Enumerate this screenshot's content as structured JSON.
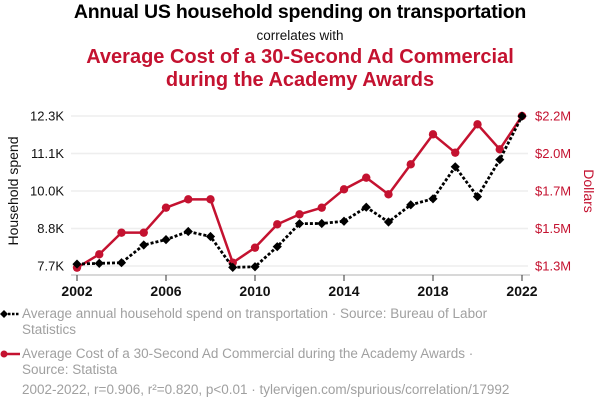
{
  "header": {
    "title": "Annual US household spending on transportation",
    "subtitle": "correlates with",
    "second_title_line1": "Average Cost of a 30-Second Ad Commercial",
    "second_title_line2": "during the Academy Awards"
  },
  "colors": {
    "series1": "#000000",
    "series2": "#c41230",
    "grid": "#eeeeee",
    "axis": "#cccccc",
    "muted_text": "#a0a0a0"
  },
  "chart_data": {
    "type": "line",
    "title": "Annual US household spending on transportation correlates with Average Cost of a 30-Second Ad Commercial during the Academy Awards",
    "xlabel": "",
    "x": [
      2002,
      2003,
      2004,
      2005,
      2006,
      2007,
      2008,
      2009,
      2010,
      2011,
      2012,
      2013,
      2014,
      2015,
      2016,
      2017,
      2018,
      2019,
      2020,
      2021,
      2022
    ],
    "x_ticks": [
      "2002",
      "2006",
      "2010",
      "2014",
      "2018",
      "2022"
    ],
    "x_tick_values": [
      2002,
      2006,
      2010,
      2014,
      2018,
      2022
    ],
    "grid": true,
    "legend_position": "bottom",
    "left_axis": {
      "label": "Household spend",
      "range": [
        7700,
        12300
      ],
      "ticks": [
        7700,
        8850,
        10000,
        11150,
        12300
      ],
      "tick_labels": [
        "7.7K",
        "8.8K",
        "10.0K",
        "11.1K",
        "12.3K"
      ]
    },
    "right_axis": {
      "label": "Dollars",
      "range": [
        1300000,
        2200000
      ],
      "ticks": [
        1300000,
        1525000,
        1750000,
        1975000,
        2200000
      ],
      "tick_labels": [
        "$1.3M",
        "$1.5M",
        "$1.7M",
        "$2.0M",
        "$2.2M"
      ]
    },
    "series": [
      {
        "name": "Average annual household spend on transportation · Source: Bureau of Labor Statistics",
        "axis": "left",
        "style": "dotted-diamond",
        "color": "#000000",
        "values": [
          7759,
          7781,
          7801,
          8344,
          8508,
          8758,
          8604,
          7658,
          7677,
          8293,
          8998,
          9004,
          9073,
          9503,
          9049,
          9576,
          9761,
          10742,
          9826,
          10961,
          12295
        ]
      },
      {
        "name": "Average Cost of a 30-Second Ad Commercial during the Academy Awards · Source: Statista",
        "axis": "right",
        "style": "solid-circle",
        "color": "#c41230",
        "values": [
          1290000,
          1370000,
          1500000,
          1500000,
          1650000,
          1700000,
          1700000,
          1320000,
          1410000,
          1550000,
          1610000,
          1650000,
          1760000,
          1830000,
          1730000,
          1910000,
          2090000,
          1980000,
          2150000,
          2000000,
          2200000
        ]
      }
    ]
  },
  "legend": {
    "series1_line1": "Average annual household spend on transportation · Source: Bureau of Labor",
    "series1_line2": "Statistics",
    "series2_line1": "Average Cost of a 30-Second Ad Commercial during the Academy Awards ·",
    "series2_line2": "Source: Statista"
  },
  "footer": {
    "stats": "2002-2022, r=0.906, r²=0.820, p<0.01 · tylervigen.com/spurious/correlation/17992"
  }
}
